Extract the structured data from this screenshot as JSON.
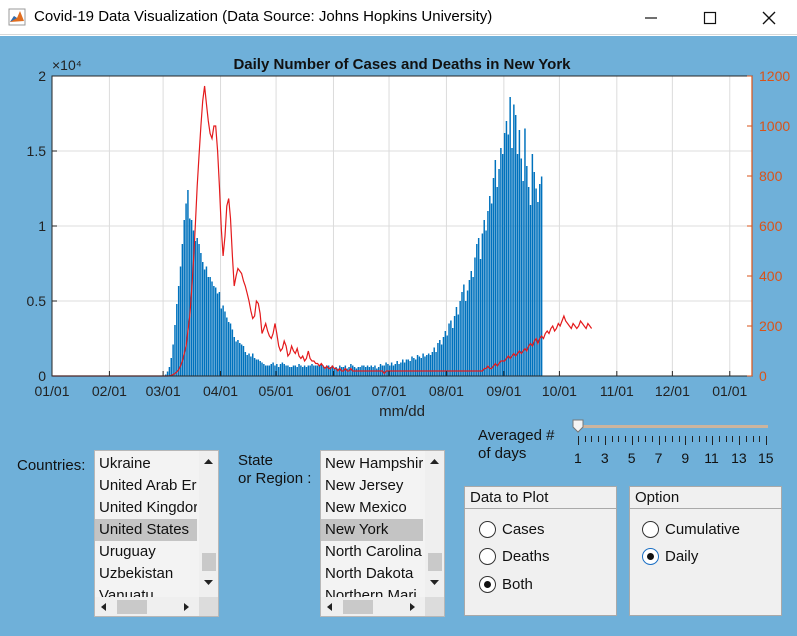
{
  "window": {
    "title": "Covid-19 Data Visualization (Data Source: Johns Hopkins University)"
  },
  "chart_data": {
    "type": "bar",
    "title": "Daily Number of Cases and Deaths in New York",
    "xlabel": "mm/dd",
    "ylabel": "",
    "left_axis": {
      "ylim": [
        0,
        20000
      ],
      "ticks": [
        "0",
        "0.5",
        "1",
        "1.5",
        "2"
      ],
      "exponent_label": "×10⁴"
    },
    "right_axis": {
      "ylim": [
        0,
        1200
      ],
      "ticks": [
        "0",
        "200",
        "400",
        "600",
        "800",
        "1000",
        "1200"
      ],
      "color": "#d95319"
    },
    "x_ticks": [
      "01/01",
      "02/01",
      "03/01",
      "04/01",
      "05/01",
      "06/01",
      "07/01",
      "08/01",
      "09/01",
      "10/01",
      "11/01",
      "12/01",
      "01/01"
    ],
    "grid": true,
    "series": [
      {
        "type": "bar",
        "axis": "left",
        "color": "#0072bd",
        "x_start": 0,
        "step": 1,
        "values": [
          0,
          0,
          0,
          0,
          0,
          0,
          0,
          0,
          0,
          0,
          0,
          0,
          0,
          0,
          0,
          0,
          0,
          0,
          0,
          0,
          0,
          0,
          0,
          0,
          0,
          0,
          0,
          0,
          0,
          0,
          0,
          0,
          0,
          0,
          0,
          0,
          0,
          0,
          0,
          0,
          0,
          0,
          0,
          0,
          0,
          0,
          0,
          0,
          0,
          0,
          0,
          0,
          0,
          0,
          0,
          0,
          0,
          0,
          0,
          0,
          0,
          100,
          300,
          600,
          1200,
          2100,
          3400,
          4800,
          6000,
          7300,
          8800,
          10400,
          11500,
          12400,
          10500,
          10400,
          9700,
          9000,
          9200,
          8800,
          8200,
          7600,
          7100,
          7300,
          6600,
          6600,
          6300,
          6000,
          5900,
          5500,
          5600,
          4500,
          4700,
          4300,
          3900,
          3600,
          3500,
          3100,
          2600,
          2300,
          2400,
          2200,
          2100,
          2000,
          1600,
          1400,
          1500,
          1300,
          1500,
          1200,
          1100,
          1100,
          1000,
          900,
          800,
          700,
          700,
          700,
          800,
          900,
          700,
          800,
          600,
          800,
          900,
          800,
          700,
          700,
          600,
          600,
          700,
          700,
          600,
          800,
          700,
          600,
          700,
          600,
          700,
          700,
          800,
          700,
          700,
          700,
          700,
          800,
          700,
          600,
          700,
          700,
          600,
          700,
          500,
          600,
          500,
          700,
          600,
          600,
          700,
          500,
          600,
          800,
          700,
          600,
          500,
          600,
          600,
          700,
          700,
          600,
          700,
          600,
          700,
          600,
          700,
          500,
          600,
          800,
          700,
          700,
          900,
          800,
          700,
          900,
          700,
          800,
          1000,
          800,
          900,
          1100,
          900,
          1100,
          1100,
          1000,
          1300,
          1200,
          1100,
          1400,
          1300,
          1200,
          1500,
          1300,
          1400,
          1500,
          1400,
          1600,
          1900,
          1600,
          2200,
          2400,
          2100,
          2600,
          3000,
          2700,
          3500,
          3700,
          3200,
          4000,
          4600,
          4100,
          5000,
          5600,
          6100,
          5000,
          5700,
          6400,
          7000,
          6600,
          7900,
          8800,
          9200,
          7800,
          9500,
          10400,
          9700,
          11000,
          12000,
          11500,
          13200,
          14400,
          12600,
          13800,
          15200,
          14800,
          16200,
          17000,
          16100,
          18600,
          15200,
          18100,
          17400,
          14800,
          16400,
          14500,
          13000,
          16500,
          14000,
          12600,
          11400,
          14800,
          13600,
          12500,
          11600,
          12800,
          13300
        ]
      },
      {
        "type": "line",
        "axis": "right",
        "color": "#e41a1c",
        "x_start": 0,
        "step": 1,
        "values": [
          0,
          0,
          0,
          0,
          0,
          0,
          0,
          0,
          0,
          0,
          0,
          0,
          0,
          0,
          0,
          0,
          0,
          0,
          0,
          0,
          0,
          0,
          0,
          0,
          0,
          0,
          0,
          0,
          0,
          0,
          0,
          0,
          0,
          0,
          0,
          0,
          0,
          0,
          0,
          0,
          0,
          0,
          0,
          0,
          0,
          0,
          0,
          0,
          0,
          0,
          0,
          0,
          0,
          0,
          0,
          0,
          0,
          0,
          0,
          0,
          0,
          0,
          0,
          1,
          3,
          6,
          10,
          16,
          25,
          40,
          60,
          90,
          120,
          180,
          240,
          340,
          460,
          600,
          760,
          880,
          1000,
          1100,
          1160,
          1090,
          1020,
          970,
          950,
          1000,
          1000,
          900,
          760,
          590,
          480,
          560,
          680,
          710,
          630,
          480,
          360,
          400,
          430,
          420,
          410,
          380,
          360,
          330,
          300,
          260,
          230,
          240,
          300,
          290,
          250,
          170,
          190,
          210,
          180,
          160,
          150,
          170,
          210,
          170,
          120,
          100,
          110,
          140,
          120,
          80,
          90,
          120,
          100,
          90,
          110,
          80,
          70,
          80,
          60,
          70,
          100,
          70,
          60,
          60,
          50,
          50,
          40,
          50,
          40,
          30,
          40,
          30,
          30,
          40,
          30,
          30,
          20,
          30,
          20,
          20,
          30,
          20,
          20,
          30,
          20,
          20,
          20,
          20,
          20,
          20,
          20,
          20,
          20,
          20,
          20,
          20,
          20,
          20,
          20,
          20,
          20,
          10,
          20,
          20,
          20,
          20,
          20,
          20,
          20,
          20,
          20,
          20,
          20,
          20,
          20,
          20,
          20,
          20,
          20,
          20,
          20,
          20,
          20,
          20,
          20,
          20,
          20,
          20,
          20,
          20,
          20,
          20,
          20,
          20,
          20,
          20,
          20,
          20,
          20,
          20,
          20,
          20,
          20,
          20,
          20,
          20,
          20,
          20,
          20,
          20,
          20,
          20,
          20,
          20,
          20,
          30,
          30,
          40,
          30,
          30,
          40,
          50,
          40,
          50,
          60,
          60,
          60,
          70,
          80,
          70,
          80,
          90,
          80,
          90,
          100,
          90,
          100,
          110,
          100,
          120,
          130,
          120,
          140,
          150,
          130,
          150,
          160,
          150,
          170,
          180,
          170,
          190,
          200,
          180,
          190,
          210,
          200,
          220,
          240,
          220,
          210,
          200,
          190,
          210,
          200,
          190,
          200,
          220,
          210,
          200,
          190,
          210,
          200,
          190
        ]
      }
    ]
  },
  "controls": {
    "countries_label": "Countries:",
    "countries": [
      "Ukraine",
      "United Arab Er",
      "United Kingdor",
      "United States",
      "Uruguay",
      "Uzbekistan",
      "Vanuatu"
    ],
    "countries_selected": "United States",
    "state_label_1": "State",
    "state_label_2": "or Region :",
    "states": [
      "New Hampshir",
      "New Jersey",
      "New Mexico",
      "New York",
      "North Carolina",
      "North Dakota",
      "Northern Mari"
    ],
    "states_selected": "New York",
    "averaged_label_1": "Averaged #",
    "averaged_label_2": "of days",
    "slider": {
      "value": 1,
      "min": 1,
      "max": 15,
      "tick_labels": [
        "1",
        "3",
        "5",
        "7",
        "9",
        "11",
        "13",
        "15"
      ]
    },
    "data_to_plot": {
      "title": "Data to Plot",
      "options": [
        "Cases",
        "Deaths",
        "Both"
      ],
      "selected": "Both"
    },
    "option_panel": {
      "title": "Option",
      "options": [
        "Cumulative",
        "Daily"
      ],
      "selected": "Daily"
    }
  },
  "colors": {
    "background": "#6fb0d9",
    "bar": "#0072bd",
    "line": "#e41a1c",
    "right_axis": "#d95319"
  }
}
